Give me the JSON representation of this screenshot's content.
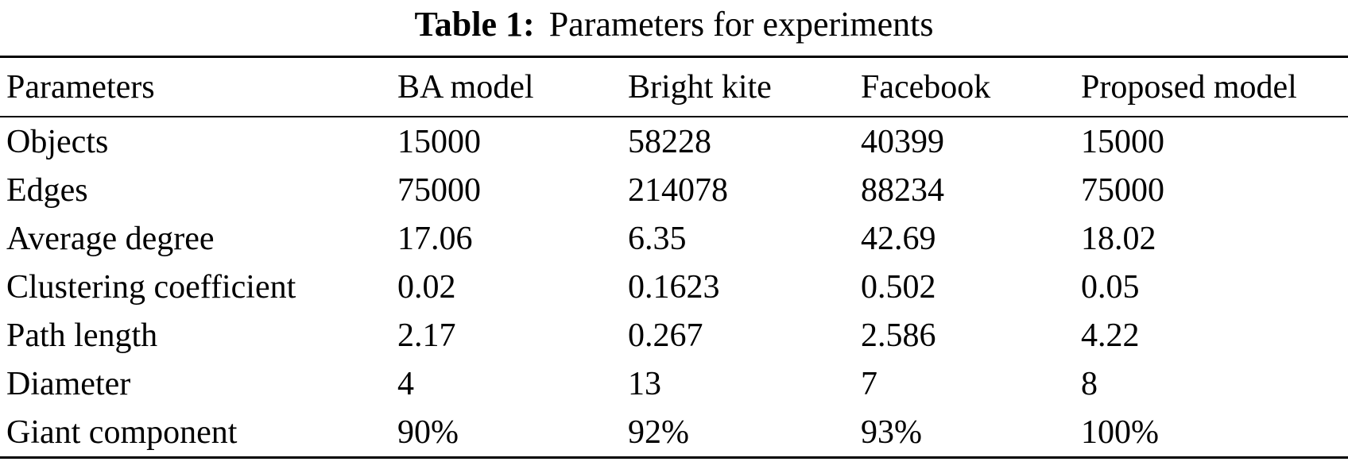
{
  "caption": {
    "label": "Table 1:",
    "text": "Parameters for experiments"
  },
  "table": {
    "columns": {
      "parameter": "Parameters",
      "ba_model": "BA model",
      "bright_kite": "Bright kite",
      "facebook": "Facebook",
      "proposed_model": "Proposed model"
    },
    "rows": [
      {
        "parameter": "Objects",
        "values": [
          "15000",
          "58228",
          "40399",
          "15000"
        ]
      },
      {
        "parameter": "Edges",
        "values": [
          "75000",
          "214078",
          "88234",
          "75000"
        ]
      },
      {
        "parameter": "Average degree",
        "values": [
          "17.06",
          "6.35",
          "42.69",
          "18.02"
        ]
      },
      {
        "parameter": "Clustering coefficient",
        "values": [
          "0.02",
          "0.1623",
          "0.502",
          "0.05"
        ]
      },
      {
        "parameter": "Path length",
        "values": [
          "2.17",
          "0.267",
          "2.586",
          "4.22"
        ]
      },
      {
        "parameter": "Diameter",
        "values": [
          "4",
          "13",
          "7",
          "8"
        ]
      },
      {
        "parameter": "Giant component",
        "values": [
          "90%",
          "92%",
          "93%",
          "100%"
        ]
      }
    ]
  },
  "colors": {
    "background": "#ffffff",
    "text": "#000000",
    "rule": "#000000"
  }
}
